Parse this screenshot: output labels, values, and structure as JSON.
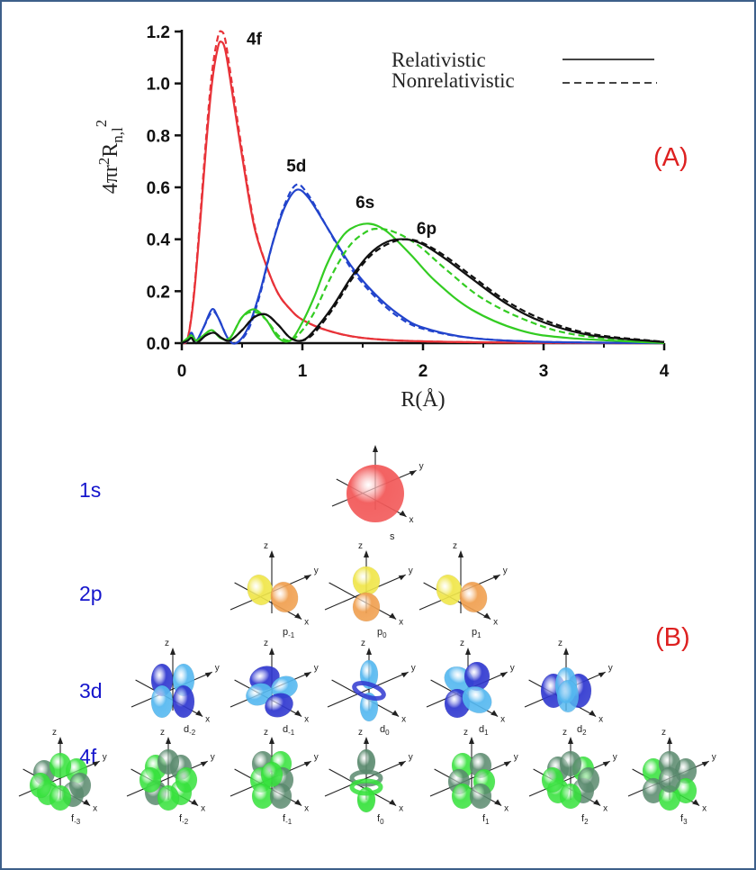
{
  "panel_labels": {
    "a": "(A)",
    "b": "(B)"
  },
  "colors": {
    "f4": "#e83238",
    "d5": "#2244cc",
    "s6": "#33cc22",
    "p6": "#111111",
    "label_red": "#dd2020",
    "label_blue": "#1515cc",
    "frame": "#3d5f8a",
    "s_orbital": "#f25a5a",
    "p_pos": "#f0e64a",
    "p_neg": "#f0a050",
    "d_pos": "#55b8f0",
    "d_neg": "#3038d0",
    "f_pos": "#36e23c",
    "f_neg": "#5a8a6e"
  },
  "chart_data": {
    "type": "line",
    "xlabel": "R(Å)",
    "ylabel": "4πr²R_n,l²",
    "ylabel_base": "4πr",
    "ylabel_sup1": "2",
    "ylabel_mid": "R",
    "ylabel_sub": "n,l",
    "ylabel_sup2": "2",
    "xlim": [
      0,
      4
    ],
    "ylim": [
      0,
      1.2
    ],
    "xticks": [
      "0",
      "1",
      "2",
      "3",
      "4"
    ],
    "yticks": [
      "0.0",
      "0.2",
      "0.4",
      "0.6",
      "0.8",
      "1.0",
      "1.2"
    ],
    "legend": {
      "position": "top-right",
      "relativistic": "Relativistic",
      "nonrelativistic": "Nonrelativistic"
    },
    "series": [
      {
        "name": "4f",
        "color": "#e83238",
        "label_at": [
          0.6,
          1.15
        ],
        "relativistic": [
          [
            0,
            0
          ],
          [
            0.05,
            0.02
          ],
          [
            0.1,
            0.18
          ],
          [
            0.15,
            0.45
          ],
          [
            0.2,
            0.75
          ],
          [
            0.25,
            1.0
          ],
          [
            0.3,
            1.14
          ],
          [
            0.33,
            1.16
          ],
          [
            0.36,
            1.13
          ],
          [
            0.4,
            1.02
          ],
          [
            0.5,
            0.72
          ],
          [
            0.6,
            0.45
          ],
          [
            0.7,
            0.3
          ],
          [
            0.8,
            0.19
          ],
          [
            0.9,
            0.13
          ],
          [
            1.0,
            0.09
          ],
          [
            1.2,
            0.05
          ],
          [
            1.5,
            0.02
          ],
          [
            2.0,
            0.007
          ],
          [
            3.0,
            0.001
          ],
          [
            4.0,
            0
          ]
        ],
        "nonrelativistic": [
          [
            0,
            0
          ],
          [
            0.05,
            0.02
          ],
          [
            0.1,
            0.19
          ],
          [
            0.15,
            0.47
          ],
          [
            0.2,
            0.78
          ],
          [
            0.25,
            1.04
          ],
          [
            0.3,
            1.18
          ],
          [
            0.33,
            1.2
          ],
          [
            0.36,
            1.17
          ],
          [
            0.4,
            1.05
          ],
          [
            0.5,
            0.74
          ],
          [
            0.6,
            0.46
          ],
          [
            0.7,
            0.3
          ],
          [
            0.8,
            0.19
          ],
          [
            0.9,
            0.13
          ],
          [
            1.0,
            0.09
          ],
          [
            1.2,
            0.05
          ],
          [
            1.5,
            0.02
          ],
          [
            2.0,
            0.007
          ],
          [
            3.0,
            0.001
          ],
          [
            4.0,
            0
          ]
        ]
      },
      {
        "name": "5d",
        "color": "#2244cc",
        "label_at": [
          0.95,
          0.66
        ],
        "relativistic": [
          [
            0,
            0
          ],
          [
            0.05,
            0.01
          ],
          [
            0.08,
            0.04
          ],
          [
            0.12,
            0.01
          ],
          [
            0.18,
            0.06
          ],
          [
            0.25,
            0.13
          ],
          [
            0.3,
            0.1
          ],
          [
            0.38,
            0.02
          ],
          [
            0.45,
            0.0
          ],
          [
            0.55,
            0.06
          ],
          [
            0.65,
            0.2
          ],
          [
            0.75,
            0.38
          ],
          [
            0.85,
            0.52
          ],
          [
            0.95,
            0.59
          ],
          [
            1.05,
            0.56
          ],
          [
            1.2,
            0.45
          ],
          [
            1.4,
            0.3
          ],
          [
            1.6,
            0.19
          ],
          [
            1.8,
            0.11
          ],
          [
            2.0,
            0.06
          ],
          [
            2.4,
            0.02
          ],
          [
            3.0,
            0.005
          ],
          [
            4.0,
            0
          ]
        ],
        "nonrelativistic": [
          [
            0,
            0
          ],
          [
            0.05,
            0.01
          ],
          [
            0.08,
            0.04
          ],
          [
            0.12,
            0.01
          ],
          [
            0.18,
            0.06
          ],
          [
            0.25,
            0.12
          ],
          [
            0.3,
            0.1
          ],
          [
            0.38,
            0.02
          ],
          [
            0.45,
            0.0
          ],
          [
            0.55,
            0.05
          ],
          [
            0.65,
            0.19
          ],
          [
            0.75,
            0.38
          ],
          [
            0.85,
            0.53
          ],
          [
            0.95,
            0.61
          ],
          [
            1.05,
            0.57
          ],
          [
            1.2,
            0.45
          ],
          [
            1.4,
            0.29
          ],
          [
            1.6,
            0.18
          ],
          [
            1.8,
            0.1
          ],
          [
            2.0,
            0.055
          ],
          [
            2.4,
            0.02
          ],
          [
            3.0,
            0.005
          ],
          [
            4.0,
            0
          ]
        ]
      },
      {
        "name": "6s",
        "color": "#33cc22",
        "label_at": [
          1.52,
          0.52
        ],
        "relativistic": [
          [
            0,
            0
          ],
          [
            0.05,
            0.02
          ],
          [
            0.08,
            0.03
          ],
          [
            0.12,
            0.01
          ],
          [
            0.18,
            0.03
          ],
          [
            0.25,
            0.05
          ],
          [
            0.32,
            0.02
          ],
          [
            0.4,
            0.02
          ],
          [
            0.5,
            0.1
          ],
          [
            0.6,
            0.13
          ],
          [
            0.7,
            0.09
          ],
          [
            0.8,
            0.02
          ],
          [
            0.9,
            0.01
          ],
          [
            1.0,
            0.08
          ],
          [
            1.1,
            0.18
          ],
          [
            1.2,
            0.3
          ],
          [
            1.3,
            0.39
          ],
          [
            1.4,
            0.44
          ],
          [
            1.55,
            0.46
          ],
          [
            1.7,
            0.43
          ],
          [
            1.9,
            0.34
          ],
          [
            2.1,
            0.24
          ],
          [
            2.4,
            0.13
          ],
          [
            2.8,
            0.05
          ],
          [
            3.2,
            0.02
          ],
          [
            4.0,
            0
          ]
        ],
        "nonrelativistic": [
          [
            0,
            0
          ],
          [
            0.05,
            0.02
          ],
          [
            0.08,
            0.03
          ],
          [
            0.12,
            0.01
          ],
          [
            0.18,
            0.03
          ],
          [
            0.25,
            0.05
          ],
          [
            0.32,
            0.02
          ],
          [
            0.4,
            0.02
          ],
          [
            0.5,
            0.1
          ],
          [
            0.6,
            0.12
          ],
          [
            0.7,
            0.09
          ],
          [
            0.8,
            0.03
          ],
          [
            0.9,
            0.01
          ],
          [
            1.0,
            0.05
          ],
          [
            1.1,
            0.12
          ],
          [
            1.2,
            0.22
          ],
          [
            1.3,
            0.31
          ],
          [
            1.4,
            0.38
          ],
          [
            1.5,
            0.42
          ],
          [
            1.6,
            0.44
          ],
          [
            1.75,
            0.43
          ],
          [
            1.95,
            0.38
          ],
          [
            2.2,
            0.28
          ],
          [
            2.5,
            0.17
          ],
          [
            2.9,
            0.08
          ],
          [
            3.3,
            0.03
          ],
          [
            4.0,
            0.002
          ]
        ]
      },
      {
        "name": "6p",
        "color": "#111111",
        "label_at": [
          2.03,
          0.42
        ],
        "relativistic": [
          [
            0,
            0
          ],
          [
            0.05,
            0.01
          ],
          [
            0.08,
            0.02
          ],
          [
            0.12,
            0.0
          ],
          [
            0.2,
            0.03
          ],
          [
            0.27,
            0.04
          ],
          [
            0.33,
            0.02
          ],
          [
            0.4,
            0.01
          ],
          [
            0.5,
            0.05
          ],
          [
            0.6,
            0.1
          ],
          [
            0.7,
            0.11
          ],
          [
            0.8,
            0.07
          ],
          [
            0.9,
            0.02
          ],
          [
            1.0,
            0.01
          ],
          [
            1.1,
            0.05
          ],
          [
            1.25,
            0.14
          ],
          [
            1.4,
            0.25
          ],
          [
            1.55,
            0.34
          ],
          [
            1.7,
            0.39
          ],
          [
            1.85,
            0.4
          ],
          [
            2.0,
            0.38
          ],
          [
            2.2,
            0.32
          ],
          [
            2.4,
            0.25
          ],
          [
            2.7,
            0.15
          ],
          [
            3.0,
            0.08
          ],
          [
            3.4,
            0.03
          ],
          [
            4.0,
            0.004
          ]
        ],
        "nonrelativistic": [
          [
            0,
            0
          ],
          [
            0.05,
            0.01
          ],
          [
            0.08,
            0.02
          ],
          [
            0.12,
            0.0
          ],
          [
            0.2,
            0.03
          ],
          [
            0.27,
            0.04
          ],
          [
            0.33,
            0.02
          ],
          [
            0.4,
            0.01
          ],
          [
            0.5,
            0.05
          ],
          [
            0.6,
            0.1
          ],
          [
            0.7,
            0.11
          ],
          [
            0.8,
            0.07
          ],
          [
            0.9,
            0.02
          ],
          [
            1.0,
            0.01
          ],
          [
            1.1,
            0.04
          ],
          [
            1.25,
            0.13
          ],
          [
            1.4,
            0.24
          ],
          [
            1.55,
            0.33
          ],
          [
            1.7,
            0.38
          ],
          [
            1.85,
            0.4
          ],
          [
            2.0,
            0.385
          ],
          [
            2.2,
            0.33
          ],
          [
            2.4,
            0.26
          ],
          [
            2.7,
            0.16
          ],
          [
            3.0,
            0.09
          ],
          [
            3.4,
            0.035
          ],
          [
            4.0,
            0.005
          ]
        ]
      }
    ]
  },
  "orbitals": {
    "rows": [
      {
        "label": "1s",
        "kind": "s",
        "items": [
          {
            "base": "s",
            "sub": ""
          }
        ]
      },
      {
        "label": "2p",
        "kind": "p",
        "items": [
          {
            "base": "p",
            "sub": "-1",
            "variant": 0
          },
          {
            "base": "p",
            "sub": "0",
            "variant": 1
          },
          {
            "base": "p",
            "sub": "1",
            "variant": 0
          }
        ]
      },
      {
        "label": "3d",
        "kind": "d",
        "items": [
          {
            "base": "d",
            "sub": "-2",
            "variant": 0
          },
          {
            "base": "d",
            "sub": "-1",
            "variant": 1
          },
          {
            "base": "d",
            "sub": "0",
            "variant": 2
          },
          {
            "base": "d",
            "sub": "1",
            "variant": 3
          },
          {
            "base": "d",
            "sub": "2",
            "variant": 4
          }
        ]
      },
      {
        "label": "4f",
        "kind": "f",
        "items": [
          {
            "base": "f",
            "sub": "-3",
            "variant": 0
          },
          {
            "base": "f",
            "sub": "-2",
            "variant": 1
          },
          {
            "base": "f",
            "sub": "-1",
            "variant": 2
          },
          {
            "base": "f",
            "sub": "0",
            "variant": 3
          },
          {
            "base": "f",
            "sub": "1",
            "variant": 4
          },
          {
            "base": "f",
            "sub": "2",
            "variant": 5
          },
          {
            "base": "f",
            "sub": "3",
            "variant": 6
          }
        ]
      }
    ],
    "axis_labels": {
      "x": "x",
      "y": "y",
      "z": "z"
    }
  }
}
